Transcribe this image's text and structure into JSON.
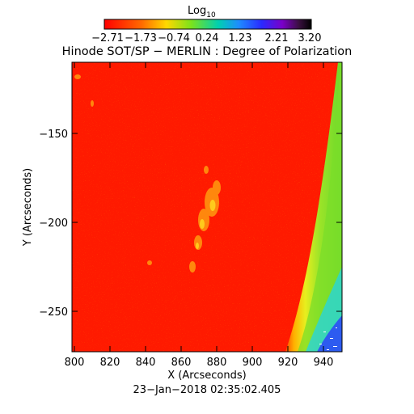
{
  "colorbar": {
    "title_main": "Log",
    "title_sub": "10",
    "ticks": [
      "−2.71",
      "−1.73",
      "−0.74",
      "0.24",
      "1.23",
      "2.21",
      "3.20"
    ]
  },
  "title": "Hinode SOT/SP − MERLIN : Degree of Polarization",
  "x_axis": {
    "label": "X (Arcseconds)",
    "ticks": [
      "800",
      "820",
      "840",
      "860",
      "880",
      "900",
      "920",
      "940"
    ]
  },
  "y_axis": {
    "label": "Y (Arcseconds)",
    "ticks": [
      "−150",
      "−200",
      "−250"
    ]
  },
  "timestamp": "23−Jan−2018 02:35:02.405",
  "colors": {
    "background_map": "#ff1a00",
    "limb_green": "#7bde2a",
    "limb_yellow": "#e8ee1e",
    "cyan": "#22d4e6",
    "blue": "#2a3cff"
  }
}
